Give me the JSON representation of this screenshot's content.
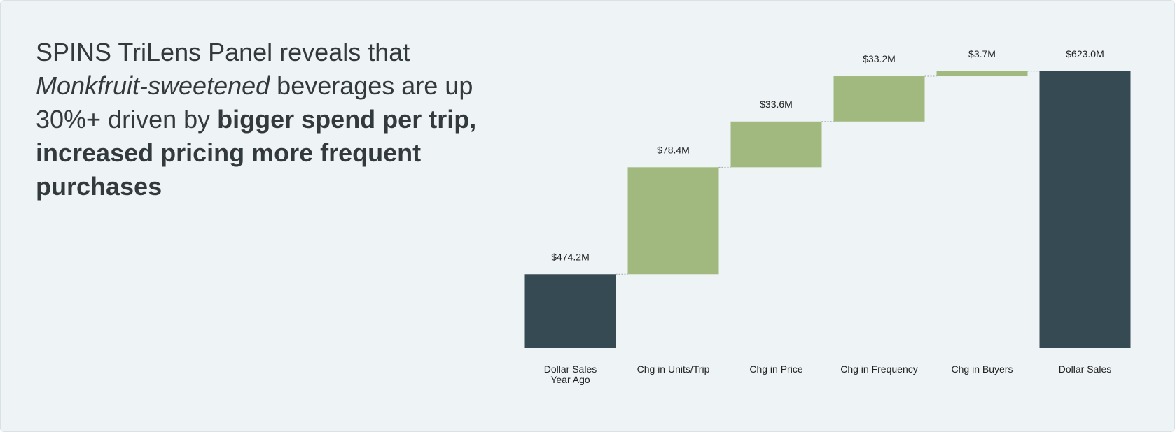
{
  "headline": [
    {
      "text": "SPINS TriLens Panel reveals that ",
      "style": "normal"
    },
    {
      "text": "Monkfruit-sweetened",
      "style": "italic"
    },
    {
      "text": " beverages are up 30%+ driven by ",
      "style": "normal"
    },
    {
      "text": "bigger spend per trip, increased pricing more frequent purchases",
      "style": "bold"
    }
  ],
  "chart_data": {
    "type": "waterfall",
    "categories": [
      "Dollar Sales\nYear Ago",
      "Chg in Units/Trip",
      "Chg in Price",
      "Chg in Frequency",
      "Chg in Buyers",
      "Dollar Sales"
    ],
    "values": [
      474.2,
      78.4,
      33.6,
      33.2,
      3.7,
      623.0
    ],
    "value_labels": [
      "$474.2M",
      "$78.4M",
      "$33.6M",
      "$33.2M",
      "$3.7M",
      "$623.0M"
    ],
    "measure": [
      "absolute",
      "relative",
      "relative",
      "relative",
      "relative",
      "total"
    ],
    "colors": [
      "#354a53",
      "#a1b97f",
      "#a1b97f",
      "#a1b97f",
      "#a1b97f",
      "#354a53"
    ],
    "ylim": [
      420,
      623
    ]
  }
}
